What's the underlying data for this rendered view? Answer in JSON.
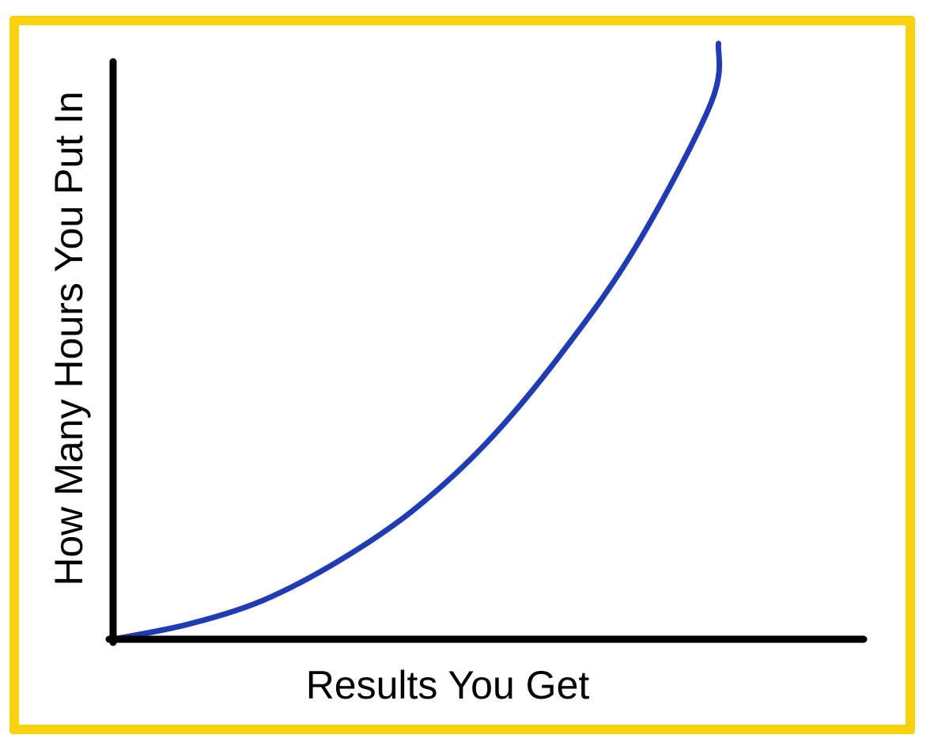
{
  "colors": {
    "frame": "#f8d20e",
    "axis": "#000000",
    "curve": "#1f3cb4",
    "background": "#ffffff"
  },
  "chart_data": {
    "type": "line",
    "title": "",
    "xlabel": "Results You Get",
    "ylabel": "How Many Hours You Put In",
    "xlim": [
      0,
      1
    ],
    "ylim": [
      0,
      1
    ],
    "grid": false,
    "legend": "none",
    "ticks": "none",
    "series": [
      {
        "x": [
          0,
          0.1,
          0.2,
          0.3,
          0.4,
          0.5,
          0.6,
          0.7,
          0.8,
          0.81
        ],
        "y": [
          0,
          0.025,
          0.065,
          0.13,
          0.215,
          0.33,
          0.48,
          0.66,
          0.9,
          1.0
        ]
      }
    ]
  }
}
